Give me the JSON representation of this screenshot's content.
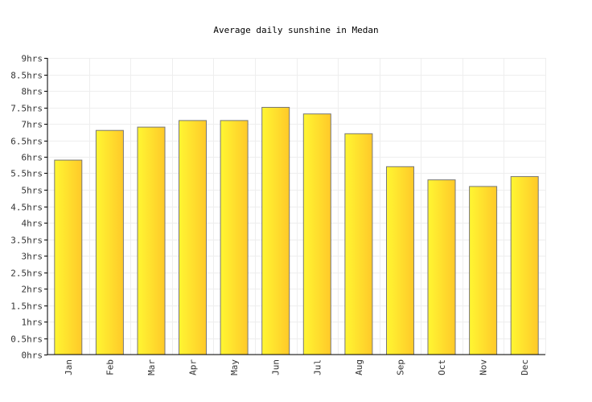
{
  "chart_data": {
    "type": "bar",
    "title": "Average daily sunshine in Medan",
    "xlabel": "",
    "ylabel": "",
    "categories": [
      "Jan",
      "Feb",
      "Mar",
      "Apr",
      "May",
      "Jun",
      "Jul",
      "Aug",
      "Sep",
      "Oct",
      "Nov",
      "Dec"
    ],
    "values": [
      5.9,
      6.8,
      6.9,
      7.1,
      7.1,
      7.5,
      7.3,
      6.7,
      5.7,
      5.3,
      5.1,
      5.4
    ],
    "unit": "hrs",
    "ylim": [
      0,
      9
    ],
    "ytick_step": 0.5,
    "ytick_labels": [
      "0hrs",
      "0.5hrs",
      "1hrs",
      "1.5hrs",
      "2hrs",
      "2.5hrs",
      "3hrs",
      "3.5hrs",
      "4hrs",
      "4.5hrs",
      "5hrs",
      "5.5hrs",
      "6hrs",
      "6.5hrs",
      "7hrs",
      "7.5hrs",
      "8hrs",
      "8.5hrs",
      "9hrs"
    ],
    "grid": true,
    "legend": "none",
    "colors": {
      "bar_light": "#fff632",
      "bar_dark": "#ffc929",
      "bar_edge": "#777777",
      "grid": "#eeeeee",
      "axis": "#000000"
    }
  }
}
